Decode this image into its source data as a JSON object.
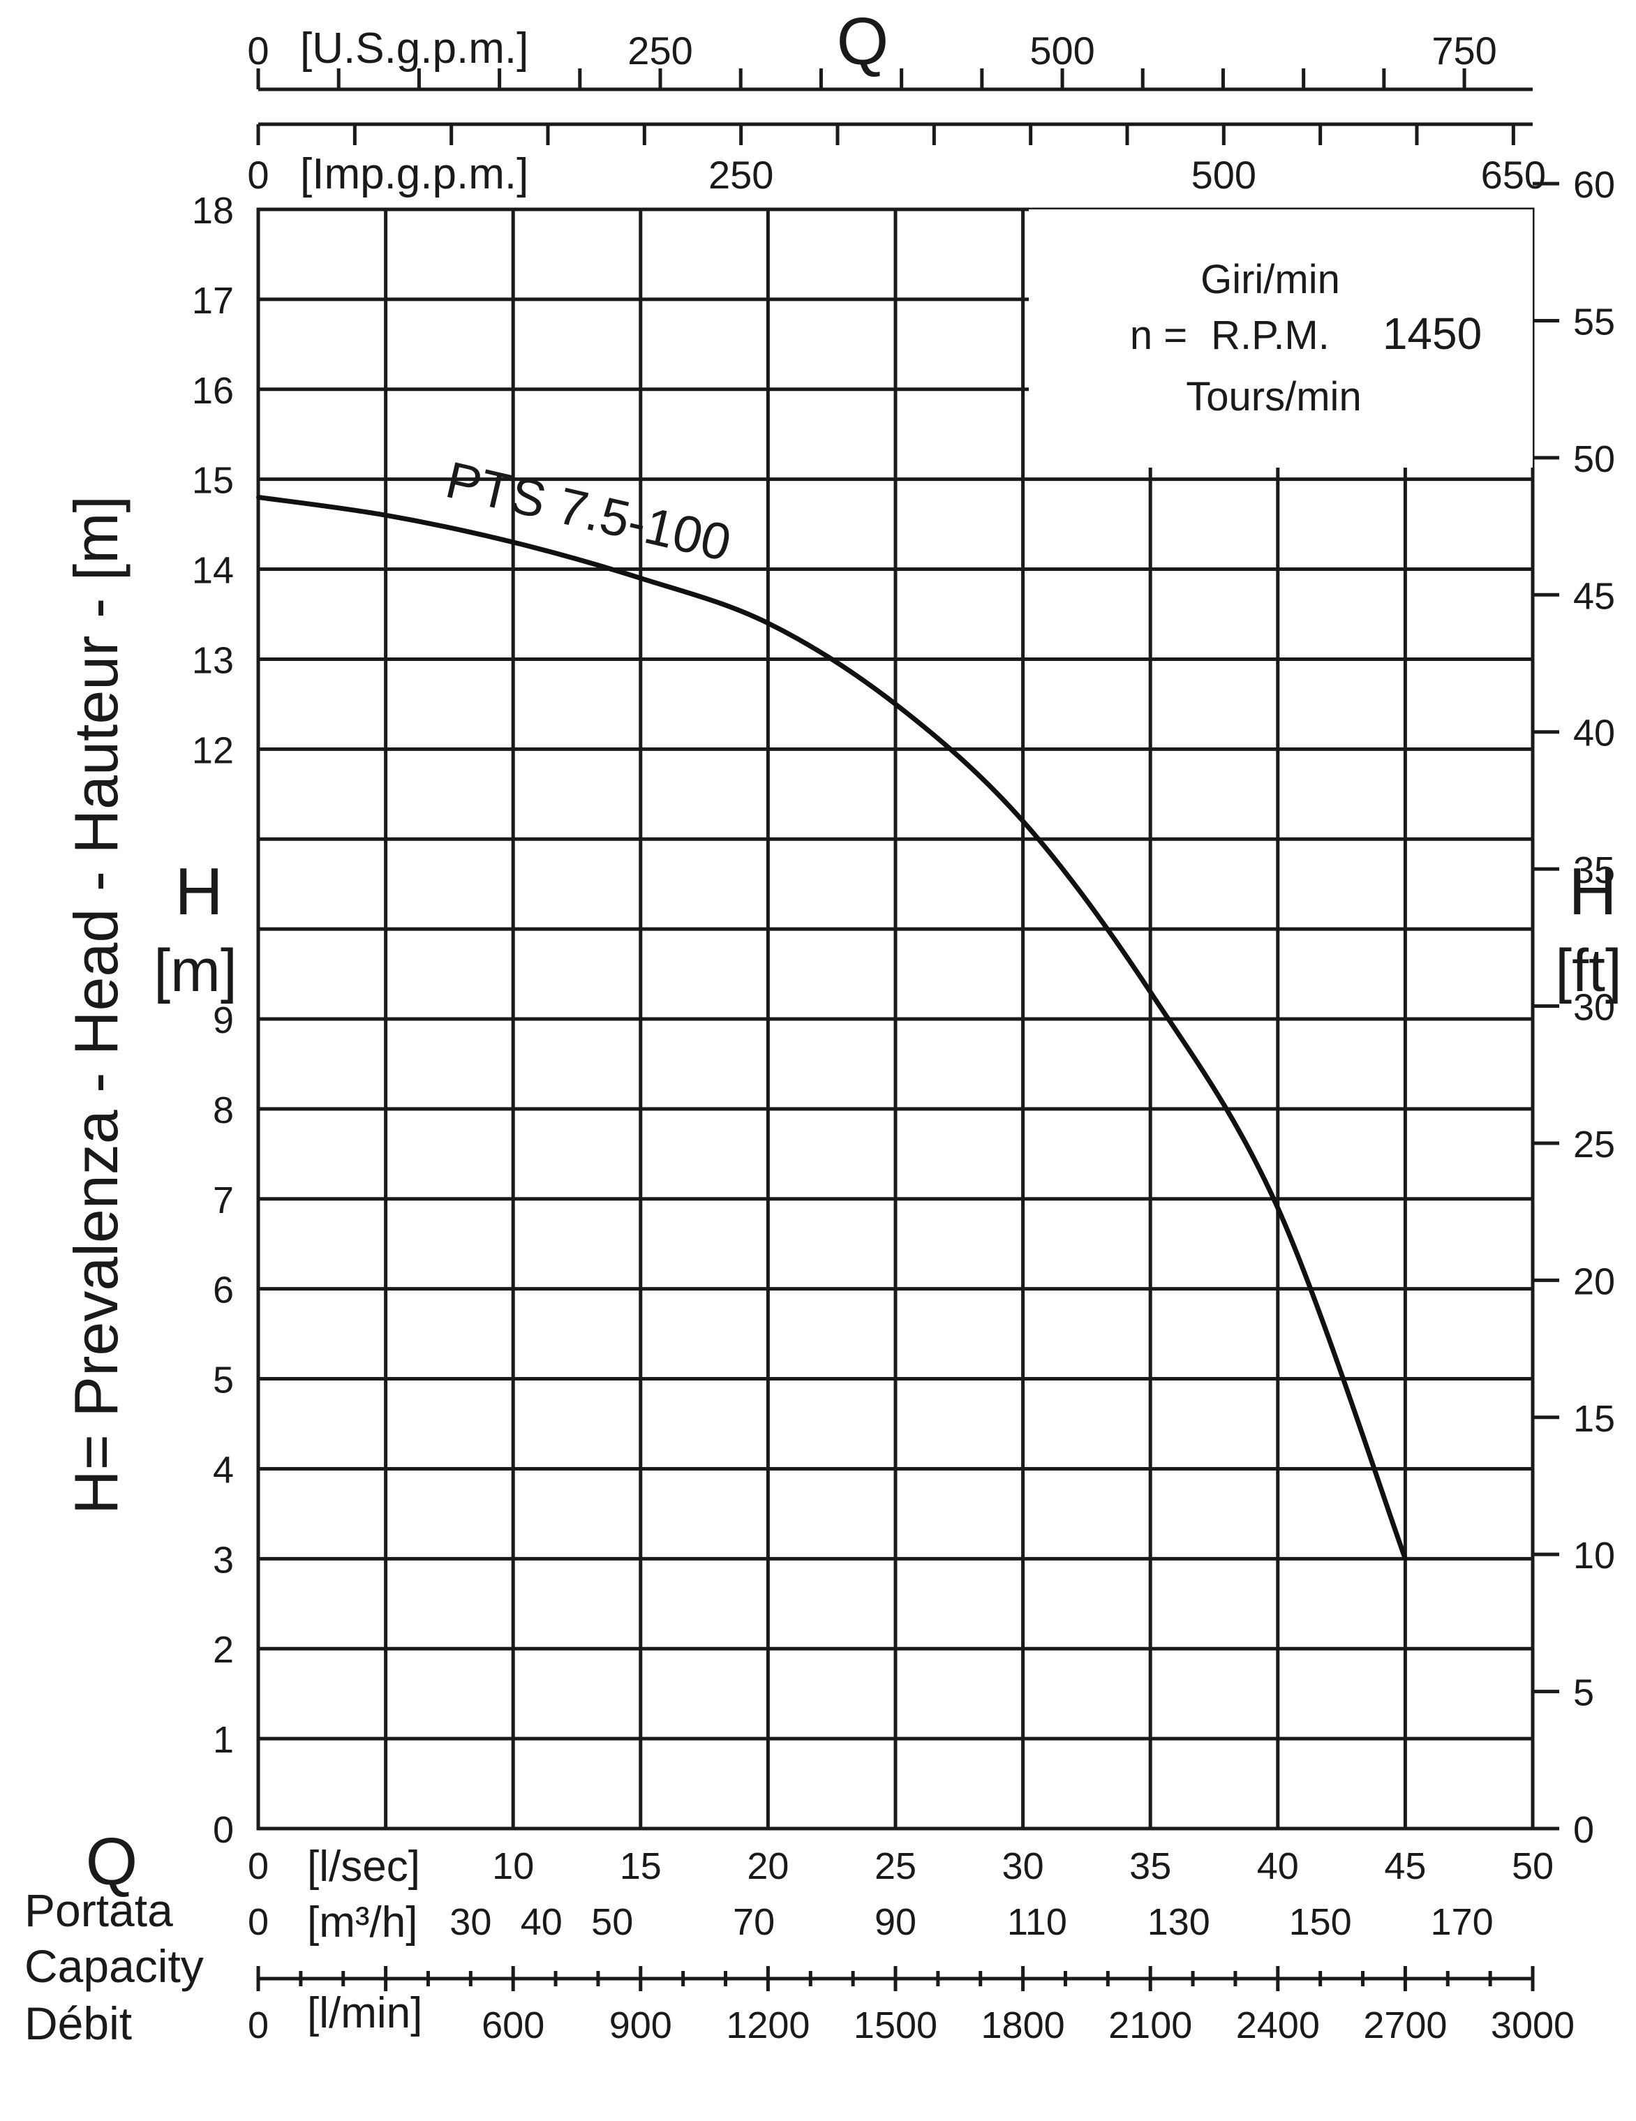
{
  "chart_data": {
    "type": "line",
    "rpm_box": {
      "line1": "Giri/min",
      "prefix": "n =",
      "line2": "R.P.M.",
      "value": "1450",
      "line3": "Tours/min"
    },
    "left_axis": {
      "symbol": "H",
      "unit": "[m]",
      "title": "H= Prevalenza - Head - Hauteur - [m]",
      "ticks": [
        "0",
        "1",
        "2",
        "3",
        "4",
        "5",
        "6",
        "7",
        "8",
        "9",
        "12",
        "13",
        "14",
        "15",
        "16",
        "17",
        "18"
      ],
      "ylim": [
        0,
        18
      ]
    },
    "right_axis": {
      "symbol": "H",
      "unit": "[ft]",
      "ticks": [
        "0",
        "5",
        "10",
        "15",
        "20",
        "25",
        "30",
        "35",
        "40",
        "45",
        "50",
        "55",
        "60"
      ],
      "ylim": [
        0,
        59.06
      ]
    },
    "top_axes": {
      "symbol": "Q",
      "usgpm": {
        "unit": "[U.S.g.p.m.]",
        "ticks": [
          "0",
          "250",
          "500",
          "750"
        ],
        "xlim": [
          0,
          792.5
        ]
      },
      "impgpm": {
        "unit": "[Imp.g.p.m.]",
        "ticks": [
          "0",
          "250",
          "500",
          "650"
        ],
        "xlim": [
          0,
          660
        ]
      }
    },
    "bottom_axes": {
      "symbol": "Q",
      "labels": [
        "Portata",
        "Capacity",
        "Débit"
      ],
      "lsec": {
        "unit": "[l/sec]",
        "ticks": [
          "0",
          "10",
          "15",
          "20",
          "25",
          "30",
          "35",
          "40",
          "45",
          "50"
        ],
        "xlim": [
          0,
          50
        ]
      },
      "m3h": {
        "unit": "[m³/h]",
        "ticks": [
          "0",
          "30",
          "40",
          "50",
          "70",
          "90",
          "110",
          "130",
          "150",
          "170"
        ],
        "xlim": [
          0,
          180
        ]
      },
      "lmin": {
        "unit": "[l/min]",
        "ticks": [
          "0",
          "600",
          "900",
          "1200",
          "1500",
          "1800",
          "2100",
          "2400",
          "2700",
          "3000"
        ],
        "xlim": [
          0,
          3000
        ]
      }
    },
    "series": [
      {
        "name": "PTS 7.5-100",
        "x_units": "l/sec",
        "y_units": "m",
        "x": [
          0,
          5,
          10,
          15,
          20,
          25,
          30,
          35,
          40,
          45
        ],
        "y": [
          14.8,
          14.6,
          14.3,
          13.9,
          13.4,
          12.5,
          11.2,
          9.3,
          6.9,
          3.0
        ]
      }
    ]
  }
}
